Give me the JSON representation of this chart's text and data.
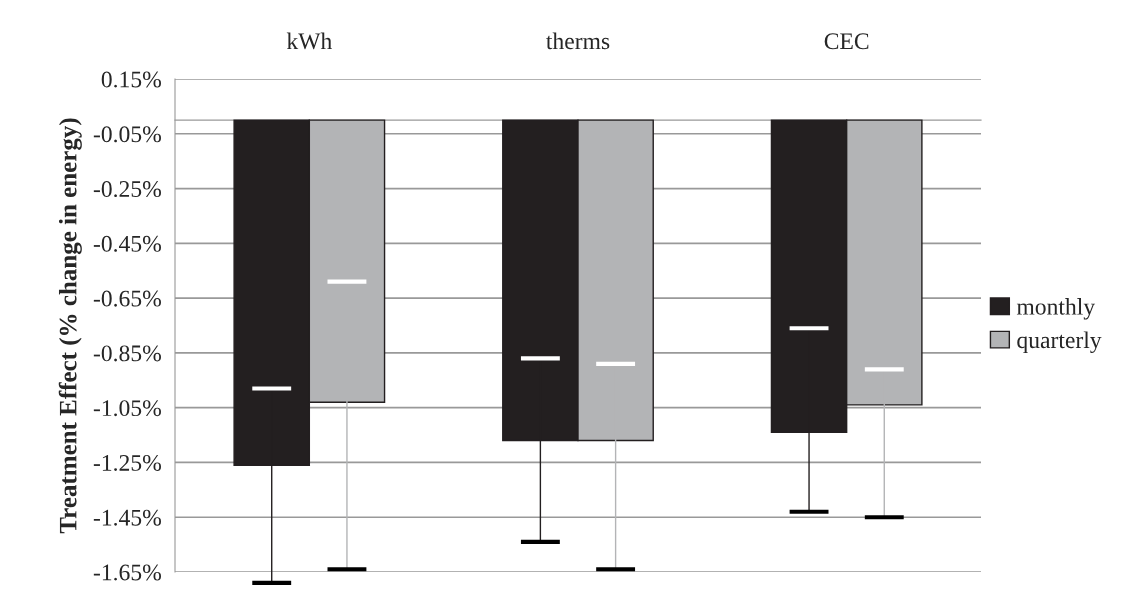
{
  "chart_data": {
    "type": "bar",
    "ylabel": "Treatment Effect (% change in energy)",
    "categories": [
      "kWh",
      "therms",
      "CEC"
    ],
    "series": [
      {
        "name": "monthly",
        "color": "#231f20",
        "values": [
          -1.26,
          -1.17,
          -1.14
        ],
        "errors": [
          [
            -1.69,
            -0.98
          ],
          [
            -1.54,
            -0.87
          ],
          [
            -1.43,
            -0.76
          ]
        ]
      },
      {
        "name": "quarterly",
        "color": "#b3b4b6",
        "values": [
          -1.03,
          -1.17,
          -1.04
        ],
        "errors": [
          [
            -1.64,
            -0.59
          ],
          [
            -1.64,
            -0.89
          ],
          [
            -1.45,
            -0.91
          ]
        ]
      }
    ],
    "ylim": [
      -1.65,
      0.15
    ],
    "yticks": [
      {
        "value": 0.15,
        "label": "0.15%"
      },
      {
        "value": -0.05,
        "label": "-0.05%"
      },
      {
        "value": -0.25,
        "label": "-0.25%"
      },
      {
        "value": -0.45,
        "label": "-0.45%"
      },
      {
        "value": -0.65,
        "label": "-0.65%"
      },
      {
        "value": -0.85,
        "label": "-0.85%"
      },
      {
        "value": -1.05,
        "label": "-1.05%"
      },
      {
        "value": -1.25,
        "label": "-1.25%"
      },
      {
        "value": -1.45,
        "label": "-1.45%"
      },
      {
        "value": -1.65,
        "label": "-1.65%"
      }
    ],
    "grid": "y",
    "legend": "right"
  }
}
